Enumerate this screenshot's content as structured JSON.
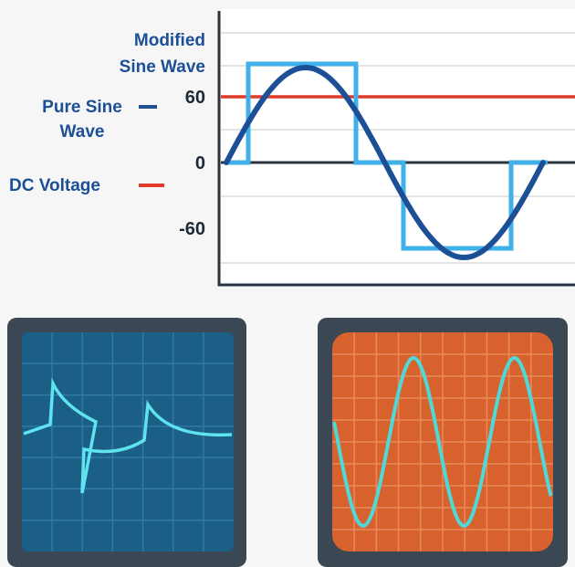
{
  "legend": {
    "modified": [
      "Modified",
      "Sine Wave"
    ],
    "pure": [
      "Pure Sine",
      "Wave"
    ],
    "dc": "DC Voltage"
  },
  "axis": {
    "ticks": [
      60,
      0,
      -60
    ]
  }
}
